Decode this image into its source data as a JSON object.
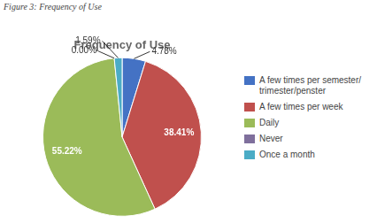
{
  "chart_data": {
    "type": "pie",
    "title": "Frequency of Use",
    "subtitle": "Figure 3: Frequency of Use",
    "categories": [
      "A few times per semester/\ntrimester/penster",
      "A few times per week",
      "Daily",
      "Never",
      "Once a month"
    ],
    "values": [
      4.78,
      38.41,
      55.22,
      0,
      1.59
    ],
    "value_labels": [
      "4.78%",
      "38.41%",
      "55.22%",
      "0.00%",
      "1.59%"
    ],
    "colors": [
      "#4472C4",
      "#C0504D",
      "#9BBB59",
      "#7F6F9C",
      "#4BACC6"
    ],
    "data_labels": true,
    "legend": "right"
  }
}
